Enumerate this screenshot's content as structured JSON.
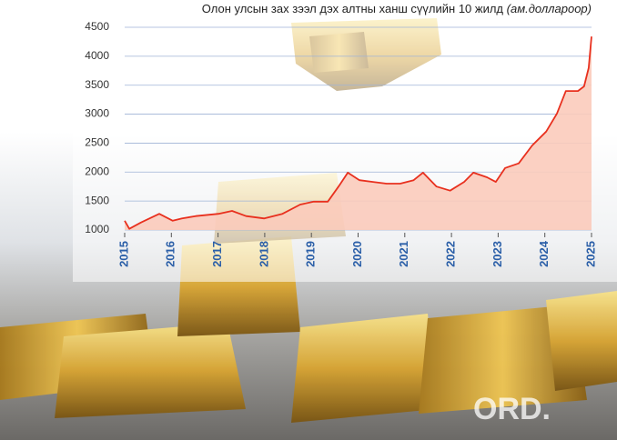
{
  "chart_data": {
    "type": "area",
    "title": "Олон улсын зах зээл дэх алтны ханш сүүлийн 10 жилд",
    "unit": "(ам.доллароор)",
    "x": [
      2015.0,
      2015.1,
      2015.35,
      2015.74,
      2016.03,
      2016.23,
      2016.52,
      2017.01,
      2017.3,
      2017.6,
      2017.99,
      2018.38,
      2018.76,
      2019.05,
      2019.35,
      2019.58,
      2019.78,
      2020.03,
      2020.32,
      2020.61,
      2020.9,
      2021.19,
      2021.39,
      2021.68,
      2021.97,
      2022.27,
      2022.47,
      2022.76,
      2022.95,
      2023.15,
      2023.44,
      2023.73,
      2024.03,
      2024.26,
      2024.45,
      2024.71,
      2024.84,
      2024.94,
      2025.0
    ],
    "values": [
      1160,
      1020,
      1130,
      1280,
      1160,
      1200,
      1240,
      1280,
      1330,
      1240,
      1200,
      1280,
      1440,
      1490,
      1490,
      1750,
      1990,
      1860,
      1830,
      1800,
      1800,
      1860,
      1990,
      1750,
      1680,
      1830,
      1990,
      1910,
      1830,
      2070,
      2150,
      2460,
      2700,
      3010,
      3400,
      3400,
      3480,
      3800,
      4340
    ],
    "line_color": "#e8301e",
    "fill_color": "#fbcbbb",
    "xlim": [
      2015,
      2025
    ],
    "xticks": [
      2015,
      2016,
      2017,
      2018,
      2019,
      2020,
      2021,
      2022,
      2023,
      2024,
      2025
    ],
    "ylim": [
      1000,
      4500
    ],
    "yticks": [
      1000,
      1500,
      2000,
      2500,
      3000,
      3500,
      4000,
      4500
    ],
    "grid": true,
    "watermark": "ORD."
  }
}
